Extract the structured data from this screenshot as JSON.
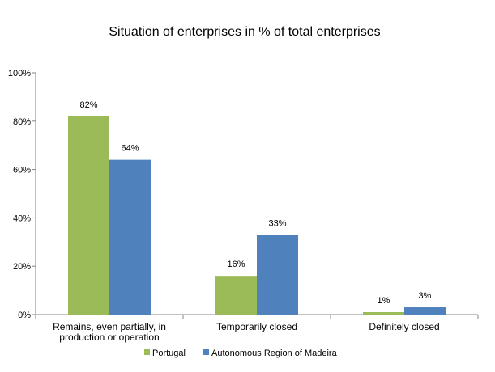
{
  "chart_data": {
    "type": "bar",
    "title": "Situation of enterprises in % of total enterprises",
    "xlabel": "",
    "ylabel": "",
    "ylim": [
      0,
      100
    ],
    "yticks": [
      0,
      20,
      40,
      60,
      80,
      100
    ],
    "ytick_labels": [
      "0%",
      "20%",
      "40%",
      "60%",
      "80%",
      "100%"
    ],
    "categories": [
      [
        "Remains, even partially, in",
        "production or operation"
      ],
      [
        "Temporarily closed"
      ],
      [
        "Definitely closed"
      ]
    ],
    "series": [
      {
        "name": "Portugal",
        "color": "#9BBB59",
        "values": [
          82,
          16,
          1
        ],
        "labels": [
          "82%",
          "16%",
          "1%"
        ]
      },
      {
        "name": "Autonomous Region of Madeira",
        "color": "#4F81BD",
        "values": [
          64,
          33,
          3
        ],
        "labels": [
          "64%",
          "33%",
          "3%"
        ]
      }
    ],
    "grid": false,
    "legend": "bottom"
  }
}
